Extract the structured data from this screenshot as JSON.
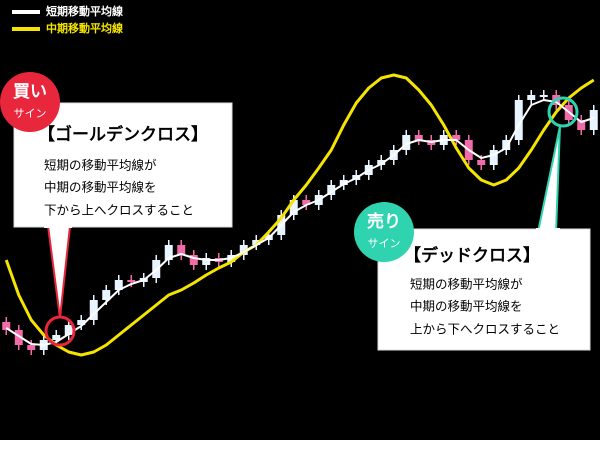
{
  "chart_data": {
    "type": "candlestick",
    "categories": [
      null,
      null,
      null,
      null,
      null,
      null,
      null,
      null,
      null,
      null,
      null,
      null,
      null,
      null,
      null,
      null,
      null,
      null,
      null,
      null,
      null,
      null,
      null,
      null,
      null,
      null,
      null,
      null,
      null,
      null,
      null,
      null,
      null,
      null,
      null,
      null,
      null,
      null,
      null,
      null,
      null,
      null,
      null,
      null,
      null,
      null,
      null,
      null
    ],
    "open": [
      118,
      110,
      95,
      90,
      100,
      105,
      115,
      120,
      140,
      150,
      160,
      158,
      162,
      180,
      195,
      185,
      175,
      182,
      178,
      185,
      195,
      200,
      205,
      225,
      240,
      235,
      245,
      255,
      260,
      265,
      275,
      280,
      290,
      305,
      300,
      295,
      305,
      300,
      280,
      275,
      290,
      300,
      340,
      345,
      345,
      335,
      320,
      310
    ],
    "high": [
      123,
      115,
      100,
      105,
      110,
      120,
      125,
      145,
      155,
      165,
      165,
      167,
      185,
      200,
      200,
      190,
      187,
      187,
      190,
      200,
      205,
      210,
      230,
      245,
      245,
      250,
      260,
      265,
      270,
      280,
      285,
      295,
      310,
      310,
      305,
      310,
      310,
      305,
      285,
      295,
      305,
      345,
      350,
      350,
      350,
      340,
      325,
      335
    ],
    "low": [
      105,
      90,
      85,
      85,
      95,
      100,
      110,
      115,
      135,
      145,
      153,
      153,
      157,
      175,
      180,
      170,
      170,
      173,
      173,
      180,
      190,
      195,
      200,
      220,
      230,
      230,
      240,
      250,
      255,
      260,
      270,
      275,
      285,
      295,
      290,
      290,
      295,
      275,
      270,
      270,
      285,
      295,
      335,
      340,
      330,
      315,
      305,
      305
    ],
    "close": [
      110,
      95,
      90,
      100,
      105,
      115,
      120,
      140,
      150,
      160,
      158,
      162,
      180,
      195,
      185,
      175,
      182,
      178,
      185,
      195,
      200,
      205,
      225,
      240,
      235,
      245,
      255,
      260,
      265,
      275,
      280,
      290,
      305,
      300,
      295,
      305,
      300,
      280,
      275,
      290,
      300,
      340,
      345,
      345,
      335,
      320,
      310,
      330
    ],
    "up_color": "#e8f4ff",
    "down_color": "#f06ba8",
    "series": [
      {
        "name": "短期移動平均線",
        "color": "#ffffff",
        "values": [
          112,
          104,
          96,
          95,
          98,
          106,
          114,
          126,
          138,
          150,
          156,
          160,
          170,
          182,
          186,
          182,
          180,
          180,
          182,
          188,
          195,
          202,
          215,
          228,
          235,
          240,
          248,
          256,
          262,
          270,
          276,
          285,
          296,
          300,
          298,
          300,
          300,
          290,
          282,
          285,
          292,
          315,
          335,
          340,
          338,
          328,
          318,
          322
        ]
      },
      {
        "name": "中期移動平均線",
        "color": "#f5e400",
        "values": [
          180,
          145,
          120,
          105,
          95,
          88,
          85,
          88,
          95,
          105,
          115,
          125,
          135,
          145,
          150,
          157,
          165,
          172,
          178,
          188,
          195,
          208,
          222,
          240,
          255,
          272,
          290,
          315,
          337,
          352,
          362,
          365,
          362,
          350,
          335,
          315,
          292,
          272,
          260,
          255,
          260,
          272,
          290,
          310,
          328,
          342,
          352,
          360
        ]
      }
    ],
    "ylim": [
      0,
      440
    ],
    "annotations": [
      {
        "badge": "買い",
        "badge_sub": "サイン",
        "title": "【ゴールデンクロス】",
        "lines": [
          "短期の移動平均線が",
          "中期の移動平均線を",
          "下から上へクロスすること"
        ]
      },
      {
        "badge": "売り",
        "badge_sub": "サイン",
        "title": "【デッドクロス】",
        "lines": [
          "短期の移動平均線が",
          "中期の移動平均線を",
          "上から下へクロスすること"
        ]
      }
    ]
  }
}
